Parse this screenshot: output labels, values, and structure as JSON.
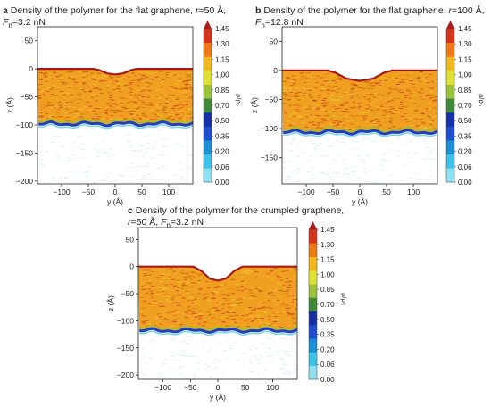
{
  "chart_data": [
    {
      "type": "heatmap",
      "panel_letter": "a",
      "title_text": "Density of the polymer for the flat graphene, ",
      "title_r_symbol": "r",
      "title_r_value": "=50 Å,",
      "title_f_symbol": "F",
      "title_f_sub": "n",
      "title_f_value": "=3.2 nN",
      "xlabel": "y (Å)",
      "ylabel": "z (Å)",
      "xticks": [
        -100,
        -50,
        0,
        50,
        100
      ],
      "xtick_labels": [
        "−100",
        "−50",
        "0",
        "50",
        "100"
      ],
      "yticks": [
        50,
        0,
        -50,
        -100,
        -150,
        -200
      ],
      "ytick_labels": [
        "50",
        "0",
        "−50",
        "−100",
        "−150",
        "−200"
      ],
      "xlim": [
        -145,
        145
      ],
      "ylim": [
        -205,
        75
      ],
      "top_surface": {
        "y": [
          -145,
          -40,
          -30,
          -15,
          0,
          15,
          30,
          40,
          145
        ],
        "z": [
          0,
          0,
          -2,
          -8,
          -10,
          -8,
          -2,
          0,
          0
        ]
      },
      "bottom_surface_z": -98
    },
    {
      "type": "heatmap",
      "panel_letter": "b",
      "title_text": "Density of the polymer for the flat graphene, ",
      "title_r_symbol": "r",
      "title_r_value": "=100 Å,",
      "title_f_symbol": "F",
      "title_f_sub": "n",
      "title_f_value": "=12.8 nN",
      "xlabel": "y (Å)",
      "ylabel": "z (Å)",
      "xticks": [
        -100,
        -50,
        0,
        50,
        100
      ],
      "xtick_labels": [
        "−100",
        "−50",
        "0",
        "50",
        "100"
      ],
      "yticks": [
        50,
        0,
        -50,
        -100,
        -150
      ],
      "ytick_labels": [
        "50",
        "0",
        "−50",
        "−100",
        "−150"
      ],
      "xlim": [
        -145,
        145
      ],
      "ylim": [
        -195,
        75
      ],
      "top_surface": {
        "y": [
          -145,
          -60,
          -45,
          -25,
          0,
          25,
          45,
          60,
          145
        ],
        "z": [
          0,
          0,
          -4,
          -14,
          -18,
          -14,
          -4,
          0,
          0
        ]
      },
      "bottom_surface_z": -106
    },
    {
      "type": "heatmap",
      "panel_letter": "c",
      "title_text": "Density of the polymer for the crumpled graphene,",
      "title_r_symbol": "r",
      "title_r_value": "=50 Å, ",
      "title_f_symbol": "F",
      "title_f_sub": "n",
      "title_f_value": "=3.2 nN",
      "xlabel": "y (Å)",
      "ylabel": "z (Å)",
      "xticks": [
        -100,
        -50,
        0,
        50,
        100
      ],
      "xtick_labels": [
        "−100",
        "−50",
        "0",
        "50",
        "100"
      ],
      "yticks": [
        50,
        0,
        -50,
        -100,
        -150,
        -200
      ],
      "ytick_labels": [
        "50",
        "0",
        "−50",
        "−100",
        "−150",
        "−200"
      ],
      "xlim": [
        -145,
        145
      ],
      "ylim": [
        -208,
        72
      ],
      "top_surface": {
        "y": [
          -145,
          -45,
          -30,
          -15,
          0,
          15,
          30,
          45,
          145
        ],
        "z": [
          0,
          0,
          -8,
          -22,
          -26,
          -22,
          -8,
          0,
          0
        ]
      },
      "bottom_surface_z": -118
    }
  ],
  "colorbar": {
    "label": "ρ/ρ₀",
    "levels": [
      0.0,
      0.06,
      0.2,
      0.35,
      0.5,
      0.7,
      0.85,
      1.0,
      1.15,
      1.3,
      1.45
    ],
    "level_labels": [
      "0.00",
      "0.06",
      "0.20",
      "0.35",
      "0.50",
      "0.70",
      "0.85",
      "1.00",
      "1.15",
      "1.30",
      "1.45"
    ],
    "colors": [
      "#8fe0f0",
      "#3cc3e8",
      "#1a8fd6",
      "#1f4fd0",
      "#1630a8",
      "#3f8a3a",
      "#9cc23c",
      "#e0e030",
      "#f2b81a",
      "#ee7a14",
      "#d8321a",
      "#b01818"
    ]
  }
}
